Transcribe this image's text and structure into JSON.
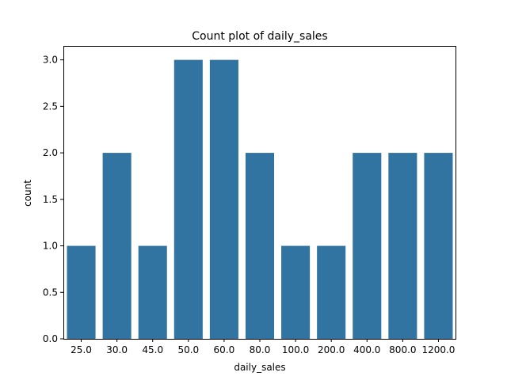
{
  "chart_data": {
    "type": "bar",
    "title": "Count plot of daily_sales",
    "xlabel": "daily_sales",
    "ylabel": "count",
    "categories": [
      "25.0",
      "30.0",
      "45.0",
      "50.0",
      "60.0",
      "80.0",
      "100.0",
      "200.0",
      "400.0",
      "800.0",
      "1200.0"
    ],
    "values": [
      1,
      2,
      1,
      3,
      3,
      2,
      1,
      1,
      2,
      2,
      2
    ],
    "ylim": [
      0,
      3.15
    ],
    "yticks": [
      "0.0",
      "0.5",
      "1.0",
      "1.5",
      "2.0",
      "2.5",
      "3.0"
    ],
    "grid": false,
    "bar_color": "#3274a1"
  }
}
